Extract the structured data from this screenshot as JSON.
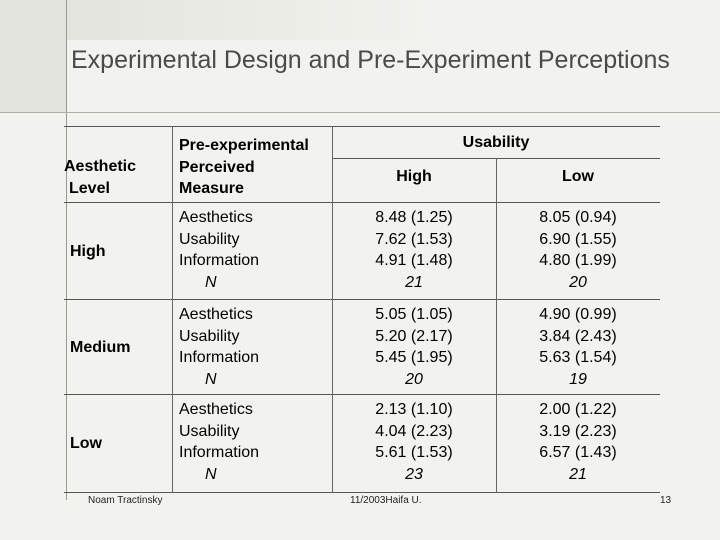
{
  "slide": {
    "title": "Experimental Design and Pre-Experiment Perceptions"
  },
  "table": {
    "col1_header": [
      "Aesthetic",
      "Level"
    ],
    "col2_header": [
      "Pre-experimental",
      "Perceived",
      "Measure"
    ],
    "group_header": "Usability",
    "col3_header": "High",
    "col4_header": "Low",
    "measures": [
      "Aesthetics",
      "Usability",
      "Information",
      "N"
    ],
    "rows": [
      {
        "level": "High",
        "high": [
          "8.48 (1.25)",
          "7.62 (1.53)",
          "4.91 (1.48)",
          "21"
        ],
        "low": [
          "8.05 (0.94)",
          "6.90 (1.55)",
          "4.80 (1.99)",
          "20"
        ]
      },
      {
        "level": "Medium",
        "high": [
          "5.05 (1.05)",
          "5.20 (2.17)",
          "5.45 (1.95)",
          "20"
        ],
        "low": [
          "4.90 (0.99)",
          "3.84 (2.43)",
          "5.63 (1.54)",
          "19"
        ]
      },
      {
        "level": "Low",
        "high": [
          "2.13 (1.10)",
          "4.04 (2.23)",
          "5.61 (1.53)",
          "23"
        ],
        "low": [
          "2.00 (1.22)",
          "3.19 (2.23)",
          "6.57 (1.43)",
          "21"
        ]
      }
    ]
  },
  "footer": {
    "author": "Noam Tractinsky",
    "date_place": "11/2003Haifa U.",
    "page": "13"
  }
}
